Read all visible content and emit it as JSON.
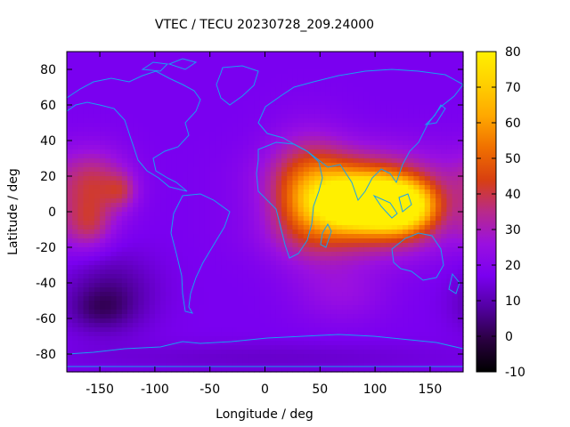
{
  "chart_data": {
    "type": "heatmap",
    "title": "VTEC / TECU 20230728_209.24000",
    "xlabel": "Longitude / deg",
    "ylabel": "Latitude / deg",
    "xlim": [
      -180,
      180
    ],
    "ylim": [
      -90,
      90
    ],
    "x_ticks": [
      -150,
      -100,
      -50,
      0,
      50,
      100,
      150
    ],
    "y_ticks": [
      -80,
      -60,
      -40,
      -20,
      0,
      20,
      40,
      60,
      80
    ],
    "colorbar": {
      "range": [
        -10,
        80
      ],
      "ticks": [
        -10,
        0,
        10,
        20,
        30,
        40,
        50,
        60,
        70,
        80
      ],
      "palette": [
        "#000000",
        "#2a0040",
        "#5200a0",
        "#7a00f0",
        "#9a10e0",
        "#b82a8a",
        "#d84010",
        "#f07000",
        "#ffa800",
        "#ffd000",
        "#fff000"
      ]
    },
    "background_value": 17,
    "features": [
      {
        "name": "south-asia-peak",
        "lon": 85,
        "lat": 5,
        "value": 72,
        "sigma_lon": 28,
        "sigma_lat": 10
      },
      {
        "name": "east-asia-peak",
        "lon": 125,
        "lat": 3,
        "value": 55,
        "sigma_lon": 22,
        "sigma_lat": 10
      },
      {
        "name": "equatorial-anomaly-north",
        "lon": 90,
        "lat": 18,
        "value": 22,
        "sigma_lon": 55,
        "sigma_lat": 14
      },
      {
        "name": "equatorial-anomaly-south",
        "lon": 90,
        "lat": -12,
        "value": 18,
        "sigma_lon": 55,
        "sigma_lat": 12
      },
      {
        "name": "africa-arabia-band",
        "lon": 40,
        "lat": 10,
        "value": 25,
        "sigma_lon": 25,
        "sigma_lat": 22
      },
      {
        "name": "pacific-west-band",
        "lon": -155,
        "lat": 15,
        "value": 20,
        "sigma_lon": 22,
        "sigma_lat": 14
      },
      {
        "name": "pacific-south-band",
        "lon": -160,
        "lat": -8,
        "value": 15,
        "sigma_lon": 15,
        "sigma_lat": 10
      },
      {
        "name": "pacific-north-blob",
        "lon": -130,
        "lat": 12,
        "value": 12,
        "sigma_lon": 10,
        "sigma_lat": 7
      },
      {
        "name": "southern-indian-ocean",
        "lon": 70,
        "lat": -45,
        "value": 8,
        "sigma_lon": 30,
        "sigma_lat": 12
      },
      {
        "name": "south-pacific-trough",
        "lon": -140,
        "lat": -45,
        "value": -10,
        "sigma_lon": 28,
        "sigma_lat": 15
      },
      {
        "name": "southern-ocean-trough",
        "lon": -150,
        "lat": -55,
        "value": -8,
        "sigma_lon": 20,
        "sigma_lat": 8
      },
      {
        "name": "antarctic-trough",
        "lon": 0,
        "lat": -82,
        "value": -4,
        "sigma_lon": 120,
        "sigma_lat": 6
      }
    ]
  }
}
